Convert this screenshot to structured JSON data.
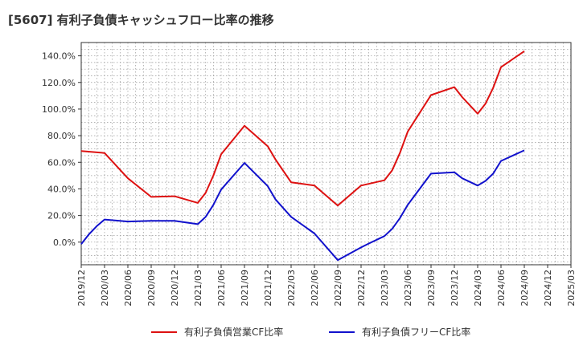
{
  "chart_data": {
    "type": "line",
    "title": "[5607]  有利子負債キャッシュフロー比率の推移",
    "xlabel": "",
    "ylabel": "",
    "x_ticks": [
      "2019/12",
      "2020/03",
      "2020/06",
      "2020/09",
      "2020/12",
      "2021/03",
      "2021/06",
      "2021/09",
      "2021/12",
      "2022/03",
      "2022/06",
      "2022/09",
      "2022/12",
      "2023/03",
      "2023/06",
      "2023/09",
      "2023/12",
      "2024/03",
      "2024/06",
      "2024/09",
      "2024/12",
      "2025/03"
    ],
    "y_ticks": [
      "0.0%",
      "20.0%",
      "40.0%",
      "60.0%",
      "80.0%",
      "100.0%",
      "120.0%",
      "140.0%"
    ],
    "ylim": [
      -17,
      150
    ],
    "grid": true,
    "legend_position": "bottom",
    "series": [
      {
        "name": "有利子負債営業CF比率",
        "color": "#dd1111",
        "points": [
          [
            "2019/12",
            68.5
          ],
          [
            "2020/03",
            67.0
          ],
          [
            "2020/06",
            48.0
          ],
          [
            "2020/09",
            34.0
          ],
          [
            "2020/12",
            34.5
          ],
          [
            "2021/03",
            29.5
          ],
          [
            "2021/04",
            37.0
          ],
          [
            "2021/05",
            50.0
          ],
          [
            "2021/06",
            66.0
          ],
          [
            "2021/09",
            87.5
          ],
          [
            "2021/12",
            72.0
          ],
          [
            "2022/01",
            62.0
          ],
          [
            "2022/03",
            45.0
          ],
          [
            "2022/06",
            42.5
          ],
          [
            "2022/09",
            27.5
          ],
          [
            "2022/12",
            42.5
          ],
          [
            "2023/03",
            46.5
          ],
          [
            "2023/04",
            54.0
          ],
          [
            "2023/05",
            67.0
          ],
          [
            "2023/06",
            83.0
          ],
          [
            "2023/09",
            110.5
          ],
          [
            "2023/12",
            116.5
          ],
          [
            "2024/01",
            109.0
          ],
          [
            "2024/03",
            96.5
          ],
          [
            "2024/04",
            104.0
          ],
          [
            "2024/05",
            116.0
          ],
          [
            "2024/06",
            131.5
          ],
          [
            "2024/09",
            143.5
          ]
        ]
      },
      {
        "name": "有利子負債フリーCF比率",
        "color": "#1111cc",
        "points": [
          [
            "2019/12",
            -1.5
          ],
          [
            "2020/01",
            6.0
          ],
          [
            "2020/02",
            12.0
          ],
          [
            "2020/03",
            17.0
          ],
          [
            "2020/06",
            15.5
          ],
          [
            "2020/09",
            16.0
          ],
          [
            "2020/12",
            16.0
          ],
          [
            "2021/03",
            13.5
          ],
          [
            "2021/04",
            19.0
          ],
          [
            "2021/05",
            28.0
          ],
          [
            "2021/06",
            39.5
          ],
          [
            "2021/09",
            59.5
          ],
          [
            "2021/12",
            42.0
          ],
          [
            "2022/01",
            32.0
          ],
          [
            "2022/03",
            19.0
          ],
          [
            "2022/06",
            6.5
          ],
          [
            "2022/09",
            -13.5
          ],
          [
            "2022/12",
            -4.0
          ],
          [
            "2023/01",
            -1.0
          ],
          [
            "2023/03",
            4.5
          ],
          [
            "2023/04",
            10.0
          ],
          [
            "2023/05",
            18.0
          ],
          [
            "2023/06",
            28.0
          ],
          [
            "2023/09",
            51.5
          ],
          [
            "2023/12",
            52.5
          ],
          [
            "2024/01",
            48.0
          ],
          [
            "2024/03",
            42.5
          ],
          [
            "2024/04",
            46.0
          ],
          [
            "2024/05",
            51.5
          ],
          [
            "2024/06",
            61.0
          ],
          [
            "2024/09",
            69.0
          ]
        ]
      }
    ]
  }
}
